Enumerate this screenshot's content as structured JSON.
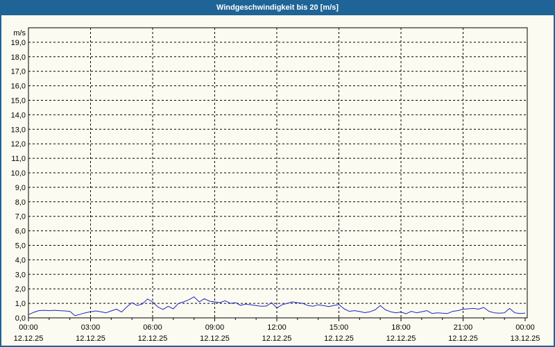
{
  "window": {
    "title": "Windgeschwindigkeit bis 20 [m/s]"
  },
  "colors": {
    "titlebar_bg": "#1E6496",
    "outer_border": "#1E6496",
    "title_text": "#FFFFFF",
    "page_bg": "#FBFBF1",
    "plot_border": "#000000",
    "grid": "#000000",
    "tick_text": "#000000",
    "line": "#2222C8"
  },
  "chart_data": {
    "type": "line",
    "title": "Windgeschwindigkeit bis 20 [m/s]",
    "ylabel": "m/s",
    "xlabel": "",
    "ylim": [
      0,
      20
    ],
    "y_tick_step": 1.0,
    "grid": "dashed",
    "legend": "none",
    "y_tick_labels": [
      "0,0",
      "1,0",
      "2,0",
      "3,0",
      "4,0",
      "5,0",
      "6,0",
      "7,0",
      "8,0",
      "9,0",
      "10,0",
      "11,0",
      "12,0",
      "13,0",
      "14,0",
      "15,0",
      "16,0",
      "17,0",
      "18,0",
      "19,0"
    ],
    "x_ticks": [
      {
        "hour": 0,
        "time": "00:00",
        "date": "12.12.25"
      },
      {
        "hour": 3,
        "time": "03:00",
        "date": "12.12.25"
      },
      {
        "hour": 6,
        "time": "06:00",
        "date": "12.12.25"
      },
      {
        "hour": 9,
        "time": "09:00",
        "date": "12.12.25"
      },
      {
        "hour": 12,
        "time": "12:00",
        "date": "12.12.25"
      },
      {
        "hour": 15,
        "time": "15:00",
        "date": "12.12.25"
      },
      {
        "hour": 18,
        "time": "18:00",
        "date": "12.12.25"
      },
      {
        "hour": 21,
        "time": "21:00",
        "date": "12.12.25"
      },
      {
        "hour": 24,
        "time": "00:00",
        "date": "13.12.25"
      }
    ],
    "x_range_hours": [
      0,
      24
    ],
    "x_minor_tick_every_hours": 1,
    "x_major_tick_every_hours": 3,
    "series": [
      {
        "name": "Windgeschwindigkeit",
        "unit": "m/s",
        "color": "#2222C8",
        "x_start_hour": 0,
        "x_step_hours": 0.25,
        "values": [
          0.22,
          0.38,
          0.5,
          0.52,
          0.5,
          0.52,
          0.5,
          0.48,
          0.45,
          0.15,
          0.25,
          0.35,
          0.42,
          0.48,
          0.42,
          0.35,
          0.48,
          0.6,
          0.4,
          0.75,
          1.05,
          0.85,
          0.95,
          1.3,
          1.1,
          0.75,
          0.58,
          0.8,
          0.62,
          1.0,
          1.1,
          1.25,
          1.45,
          1.1,
          1.32,
          1.15,
          1.1,
          1.05,
          1.18,
          1.0,
          1.05,
          0.86,
          0.95,
          0.9,
          0.85,
          0.8,
          0.82,
          1.05,
          0.68,
          0.9,
          1.0,
          1.1,
          1.05,
          1.0,
          0.85,
          0.8,
          0.9,
          0.85,
          0.78,
          0.85,
          0.92,
          0.62,
          0.45,
          0.5,
          0.44,
          0.36,
          0.42,
          0.55,
          0.85,
          0.55,
          0.42,
          0.35,
          0.4,
          0.28,
          0.45,
          0.35,
          0.42,
          0.5,
          0.3,
          0.35,
          0.32,
          0.3,
          0.45,
          0.5,
          0.6,
          0.62,
          0.65,
          0.6,
          0.72,
          0.45,
          0.35,
          0.32,
          0.35,
          0.65,
          0.35,
          0.3,
          0.33
        ]
      }
    ]
  }
}
